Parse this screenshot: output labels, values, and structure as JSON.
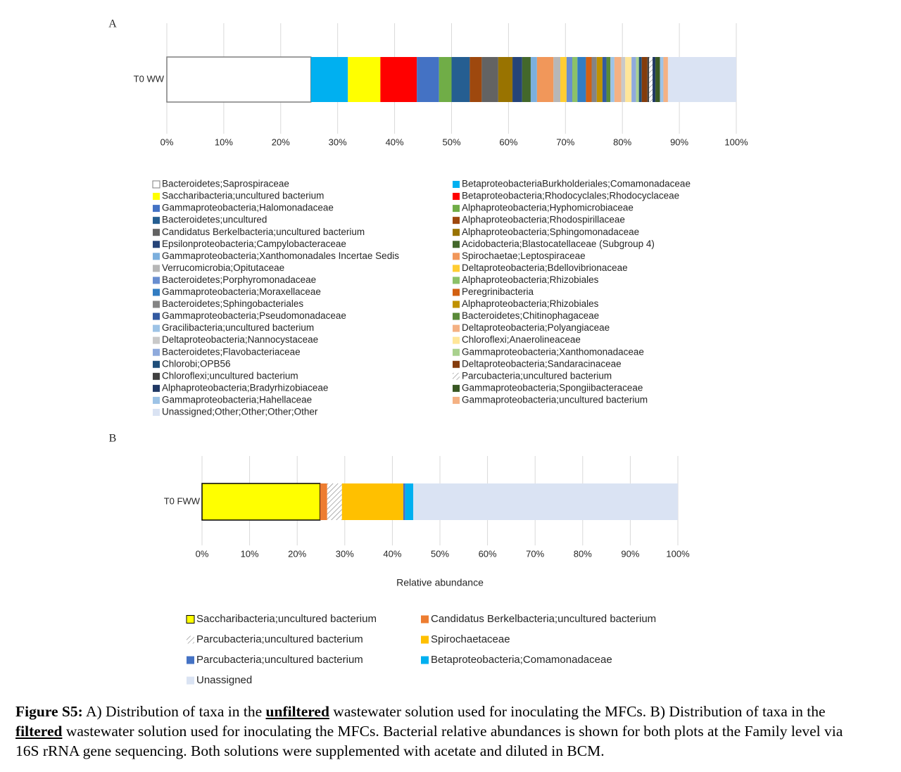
{
  "chart_data": [
    {
      "type": "bar",
      "orientation": "horizontal",
      "stacked": true,
      "label": "A",
      "categories": [
        "T0 WW"
      ],
      "xlim": [
        0,
        100
      ],
      "grid": true,
      "xticks": [
        {
          "value": 0,
          "label": "0%"
        },
        {
          "value": 10,
          "label": "10%"
        },
        {
          "value": 20,
          "label": "20%"
        },
        {
          "value": 30,
          "label": "30%"
        },
        {
          "value": 40,
          "label": "40%"
        },
        {
          "value": 50,
          "label": "50%"
        },
        {
          "value": 60,
          "label": "60%"
        },
        {
          "value": 70,
          "label": "70%"
        },
        {
          "value": 80,
          "label": "80%"
        },
        {
          "value": 90,
          "label": "90%"
        },
        {
          "value": 100,
          "label": "100%"
        }
      ],
      "series": [
        {
          "name": "Bacteroidetes;Saprospiraceae",
          "color": "#ffffff",
          "edgecolor": "#7f7f7f",
          "values": [
            25.3
          ]
        },
        {
          "name": "BetaproteobacteriaBurkholderiales;Comamonadaceae",
          "color": "#00b0f0",
          "values": [
            6.5
          ]
        },
        {
          "name": "Saccharibacteria;uncultured bacterium",
          "color": "#ffff00",
          "values": [
            5.7
          ]
        },
        {
          "name": "Betaproteobacteria;Rhodocyclales;Rhodocyclaceae",
          "color": "#ff0000",
          "values": [
            6.4
          ]
        },
        {
          "name": "Gammaproteobacteria;Halomonadaceae",
          "color": "#4472c4",
          "values": [
            3.9
          ]
        },
        {
          "name": "Alphaproteobacteria;Hyphomicrobiaceae",
          "color": "#70ad47",
          "values": [
            2.2
          ]
        },
        {
          "name": "Bacteroidetes;uncultured",
          "color": "#255e91",
          "values": [
            3.2
          ]
        },
        {
          "name": "Alphaproteobacteria;Rhodospirillaceae",
          "color": "#9e480e",
          "values": [
            2.1
          ]
        },
        {
          "name": "Candidatus Berkelbacteria;uncultured bacterium",
          "color": "#636363",
          "values": [
            2.9
          ]
        },
        {
          "name": "Alphaproteobacteria;Sphingomonadaceae",
          "color": "#997300",
          "values": [
            2.5
          ]
        },
        {
          "name": "Epsilonproteobacteria;Campylobacteraceae",
          "color": "#264478",
          "values": [
            1.7
          ]
        },
        {
          "name": "Acidobacteria;Blastocatellaceae (Subgroup 4)",
          "color": "#43682b",
          "values": [
            1.5
          ]
        },
        {
          "name": "Gammaproteobacteria;Xanthomonadales Incertae Sedis",
          "color": "#7cafdd",
          "values": [
            1.1
          ]
        },
        {
          "name": "Spirochaetae;Leptospiraceae",
          "color": "#f1975a",
          "values": [
            2.9
          ]
        },
        {
          "name": "Verrucomicrobia;Opitutaceae",
          "color": "#b7b7b7",
          "values": [
            1.2
          ]
        },
        {
          "name": "Deltaproteobacteria;Bdellovibrionaceae",
          "color": "#ffcd33",
          "values": [
            1.1
          ]
        },
        {
          "name": "Bacteroidetes;Porphyromonadaceae",
          "color": "#698ed0",
          "values": [
            1.0
          ]
        },
        {
          "name": "Alphaproteobacteria;Rhizobiales",
          "color": "#8cc168",
          "values": [
            0.9
          ]
        },
        {
          "name": "Gammaproteobacteria;Moraxellaceae",
          "color": "#327dc2",
          "values": [
            1.5
          ]
        },
        {
          "name": "Peregrinibacteria",
          "color": "#d26012",
          "values": [
            1.0
          ]
        },
        {
          "name": "Bacteroidetes;Sphingobacteriales",
          "color": "#848484",
          "values": [
            0.9
          ]
        },
        {
          "name": "Alphaproteobacteria;Rhizobiales",
          "color": "#c09200",
          "values": [
            1.0
          ]
        },
        {
          "name": "Gammaproteobacteria;Pseudomonadaceae",
          "color": "#335aa1",
          "values": [
            0.7
          ]
        },
        {
          "name": "Bacteroidetes;Chitinophagaceae",
          "color": "#5a8a39",
          "values": [
            0.7
          ]
        },
        {
          "name": "Gracilibacteria;uncultured bacterium",
          "color": "#9dc3e6",
          "values": [
            0.7
          ]
        },
        {
          "name": "Deltaproteobacteria;Polyangiaceae",
          "color": "#f4b183",
          "values": [
            1.2
          ]
        },
        {
          "name": "Deltaproteobacteria;Nannocystaceae",
          "color": "#c9c9c9",
          "values": [
            0.7
          ]
        },
        {
          "name": "Chloroflexi;Anaerolineaceae",
          "color": "#ffe699",
          "values": [
            1.1
          ]
        },
        {
          "name": "Bacteroidetes;Flavobacteriaceae",
          "color": "#8faadc",
          "values": [
            0.8
          ]
        },
        {
          "name": "Gammaproteobacteria;Xanthomonadaceae",
          "color": "#a9d18e",
          "values": [
            0.5
          ]
        },
        {
          "name": "Chlorobi;OPB56",
          "color": "#1f4e79",
          "values": [
            0.5
          ]
        },
        {
          "name": "Deltaproteobacteria;Sandaracinaceae",
          "color": "#843c0c",
          "values": [
            1.0
          ]
        },
        {
          "name": "Chloroflexi;uncultured bacterium",
          "color": "#404040",
          "values": [
            0.3
          ]
        },
        {
          "name": "Parcubacteria;uncultured bacterium",
          "color": "#7f7f7f",
          "hatch": true,
          "values": [
            0.6
          ]
        },
        {
          "name": "Alphaproteobacteria;Bradyrhizobiaceae",
          "color": "#203864",
          "values": [
            0.5
          ]
        },
        {
          "name": "Gammaproteobacteria;Spongiibacteraceae",
          "color": "#385723",
          "values": [
            0.8
          ]
        },
        {
          "name": "Gammaproteobacteria;Hahellaceae",
          "color": "#9dc3e6",
          "values": [
            0.6
          ]
        },
        {
          "name": "Gammaproteobacteria;uncultured bacterium",
          "color": "#f4b183",
          "values": [
            0.8
          ]
        },
        {
          "name": "Unassigned;Other;Other;Other;Other",
          "color": "#dae3f3",
          "values": [
            12.0
          ]
        }
      ]
    },
    {
      "type": "bar",
      "orientation": "horizontal",
      "stacked": true,
      "label": "B",
      "categories": [
        "T0 FWW"
      ],
      "xlabel": "Relative abundance",
      "xlim": [
        0,
        100
      ],
      "grid": true,
      "xticks": [
        {
          "value": 0,
          "label": "0%"
        },
        {
          "value": 10,
          "label": "10%"
        },
        {
          "value": 20,
          "label": "20%"
        },
        {
          "value": 30,
          "label": "30%"
        },
        {
          "value": 40,
          "label": "40%"
        },
        {
          "value": 50,
          "label": "50%"
        },
        {
          "value": 60,
          "label": "60%"
        },
        {
          "value": 70,
          "label": "70%"
        },
        {
          "value": 80,
          "label": "80%"
        },
        {
          "value": 90,
          "label": "90%"
        },
        {
          "value": 100,
          "label": "100%"
        }
      ],
      "series": [
        {
          "name": "Saccharibacteria;uncultured bacterium",
          "color": "#ffff00",
          "edgecolor": "#000000",
          "values": [
            24.8
          ]
        },
        {
          "name": "Candidatus Berkelbacteria;uncultured bacterium",
          "color": "#ed7d31",
          "values": [
            1.5
          ]
        },
        {
          "name": "Parcubacteria;uncultured bacterium",
          "color": "#7f7f7f",
          "hatch": true,
          "values": [
            3.1
          ]
        },
        {
          "name": "Spirochaetaceae",
          "color": "#ffc000",
          "values": [
            12.9
          ]
        },
        {
          "name": "Parcubacteria;uncultured bacterium",
          "color": "#4472c4",
          "values": [
            0.4
          ]
        },
        {
          "name": "Betaproteobacteria;Comamonadaceae",
          "color": "#00b0f0",
          "values": [
            1.7
          ]
        },
        {
          "name": "Unassigned",
          "color": "#dae3f3",
          "values": [
            55.6
          ]
        }
      ]
    }
  ],
  "caption": {
    "label": "Figure S5:",
    "parts": [
      " A) Distribution of taxa in the ",
      "unfiltered",
      " wastewater solution used for inoculating the MFCs. B) Distribution of taxa in the ",
      "filtered",
      " wastewater solution used for inoculating the MFCs. Bacterial relative abundances is shown for both plots at the Family level via 16S rRNA gene sequencing. Both solutions were supplemented with acetate and diluted in BCM."
    ]
  }
}
